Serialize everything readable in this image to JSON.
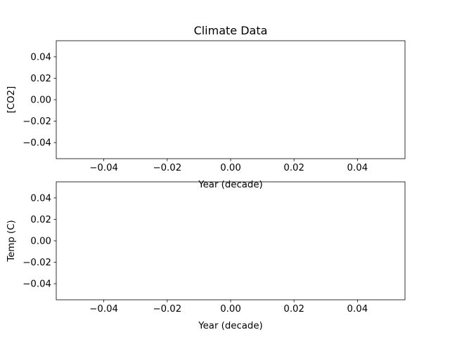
{
  "chart_data": [
    {
      "type": "line",
      "title": "Climate Data",
      "xlabel": "Year (decade)",
      "ylabel": "[CO2]",
      "xlim": [
        -0.055,
        0.055
      ],
      "ylim": [
        -0.055,
        0.055
      ],
      "xticks": [
        -0.04,
        -0.02,
        0.0,
        0.02,
        0.04
      ],
      "xtick_labels": [
        "−0.04",
        "−0.02",
        "0.00",
        "0.02",
        "0.04"
      ],
      "yticks": [
        0.04,
        0.02,
        0.0,
        -0.02,
        -0.04
      ],
      "ytick_labels": [
        "0.04",
        "0.02",
        "0.00",
        "−0.02",
        "−0.04"
      ],
      "series": [],
      "grid": false
    },
    {
      "type": "line",
      "title": "",
      "xlabel": "Year (decade)",
      "ylabel": "Temp (C)",
      "xlim": [
        -0.055,
        0.055
      ],
      "ylim": [
        -0.055,
        0.055
      ],
      "xticks": [
        -0.04,
        -0.02,
        0.0,
        0.02,
        0.04
      ],
      "xtick_labels": [
        "−0.04",
        "−0.02",
        "0.00",
        "0.02",
        "0.04"
      ],
      "yticks": [
        0.04,
        0.02,
        0.0,
        -0.02,
        -0.04
      ],
      "ytick_labels": [
        "0.04",
        "0.02",
        "0.00",
        "−0.02",
        "−0.04"
      ],
      "series": [],
      "grid": false
    }
  ]
}
